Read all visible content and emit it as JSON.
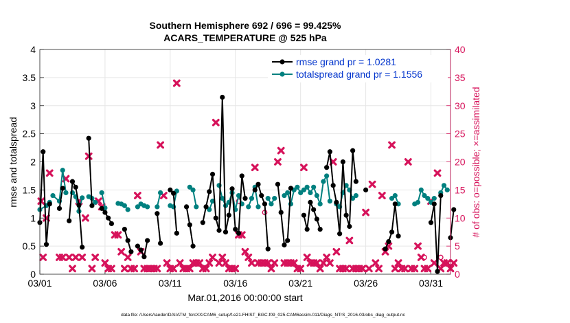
{
  "chart_data": {
    "type": "line",
    "title": "Southern Hemisphere 692 / 696 = 99.425%",
    "subtitle": "ACARS_TEMPERATURE @ 525 hPa",
    "xlabel": "Mar.01,2016 00:00:00 start",
    "ylabel_left": "rmse and totalspread",
    "ylabel_right": "# of obs: o=possible; ×=assimilated",
    "footer": "data file: /Users/raeder/DAI/ATM_forcXX/CAM6_setup/f.e21.FHIST_BGC.f09_025.CAM6assim.011/Diags_NTrS_2016-03/obs_diag_output.nc",
    "xlim": [
      0,
      31.5
    ],
    "ylim_left": [
      0,
      4
    ],
    "ylim_right": [
      0,
      40
    ],
    "x_ticks": [
      0,
      5,
      10,
      15,
      20,
      25,
      30
    ],
    "x_tick_labels": [
      "03/01",
      "03/06",
      "03/11",
      "03/16",
      "03/21",
      "03/26",
      "03/31"
    ],
    "y_ticks_left": [
      "0",
      "0.5",
      "1",
      "1.5",
      "2",
      "2.5",
      "3",
      "3.5",
      "4"
    ],
    "y_ticks_right": [
      "0",
      "5",
      "10",
      "15",
      "20",
      "25",
      "30",
      "35",
      "40"
    ],
    "grid": true,
    "legend_position": "top-right",
    "colors": {
      "rmse": "#000000",
      "spread": "#00807f",
      "obs": "#d6125a",
      "legend_text": "#0033cc"
    },
    "series": [
      {
        "name": "rmse grand pr = 1.0281",
        "axis": "left",
        "x": [
          0,
          0.25,
          0.5,
          0.75,
          null,
          1.5,
          1.75,
          null,
          2.25,
          2.5,
          2.75,
          3.0,
          3.25,
          null,
          3.75,
          4.0,
          null,
          4.75,
          5.0,
          5.25,
          5.5,
          null,
          6.5,
          6.75,
          7.0,
          null,
          7.5,
          7.75,
          8.0,
          8.25,
          null,
          9.0,
          9.25,
          null,
          10.0,
          10.25,
          10.5,
          null,
          11.25,
          11.5,
          11.75,
          null,
          12.5,
          12.75,
          13.0,
          13.25,
          13.5,
          13.75,
          14.0,
          14.25,
          14.5,
          14.75,
          15.0,
          15.25,
          15.5,
          15.75,
          null,
          16.5,
          16.75,
          17.0,
          17.25,
          17.5,
          null,
          18.25,
          18.5,
          18.75,
          19.0,
          19.25,
          null,
          20.25,
          20.5,
          20.75,
          21.0,
          21.25,
          21.5,
          null,
          22.0,
          22.25,
          22.5,
          22.75,
          23.0,
          23.25,
          23.5,
          23.75,
          24.0,
          24.25,
          null,
          25.0,
          null,
          26.5,
          26.75,
          27.0,
          27.25,
          27.5,
          null,
          30.0,
          30.25,
          30.5,
          30.75,
          null,
          31.5,
          31.75
        ],
        "values": [
          0.92,
          2.18,
          0.53,
          1.25,
          null,
          1.17,
          1.53,
          null,
          0.95,
          1.65,
          1.55,
          1.23,
          0.48,
          null,
          2.42,
          1.22,
          null,
          1.17,
          1.1,
          1.0,
          0.9,
          null,
          0.8,
          0.6,
          0.4,
          null,
          0.5,
          0.43,
          0.31,
          0.6,
          null,
          1.08,
          0.55,
          null,
          1.5,
          1.44,
          0.73,
          null,
          1.2,
          0.88,
          0.5,
          null,
          0.92,
          1.2,
          1.47,
          1.78,
          1.0,
          0.78,
          3.15,
          0.75,
          1.05,
          1.52,
          0.8,
          0.73,
          1.75,
          1.35,
          null,
          1.5,
          1.6,
          1.4,
          1.25,
          0.45,
          null,
          1.6,
          1.1,
          0.52,
          0.6,
          1.53,
          null,
          1.05,
          0.8,
          1.28,
          1.15,
          0.98,
          0.8,
          null,
          1.9,
          2.18,
          1.58,
          1.28,
          0.72,
          2.0,
          1.05,
          0.85,
          2.2,
          1.65,
          null,
          1.5,
          null,
          0.45,
          0.58,
          0.75,
          1.25,
          0.68,
          null,
          0.92,
          1.25,
          0.05,
          1.4,
          null,
          0.65,
          1.15
        ]
      },
      {
        "name": "totalspread grand pr = 1.1556",
        "axis": "left",
        "x": [
          0,
          0.5,
          0.75,
          null,
          1.0,
          1.5,
          1.75,
          2.0,
          null,
          2.5,
          2.75,
          3.0,
          3.25,
          null,
          3.75,
          4.0,
          4.25,
          null,
          4.75,
          5.0,
          null,
          6.0,
          6.25,
          6.5,
          6.75,
          null,
          7.5,
          7.75,
          8.0,
          8.25,
          null,
          9.0,
          9.25,
          null,
          10.0,
          10.25,
          10.5,
          null,
          11.5,
          11.75,
          12.0,
          null,
          13.0,
          13.25,
          null,
          13.75,
          14.0,
          14.25,
          14.5,
          14.75,
          15.0,
          15.25,
          15.5,
          null,
          16.0,
          16.25,
          16.5,
          16.75,
          null,
          17.5,
          17.75,
          18.0,
          null,
          18.75,
          19.0,
          19.25,
          19.5,
          19.75,
          20.0,
          20.25,
          20.5,
          20.75,
          21.0,
          21.25,
          21.5,
          21.75,
          22.0,
          22.25,
          null,
          22.75,
          23.0,
          23.25,
          23.5,
          23.75,
          24.0,
          24.25,
          null,
          27.0,
          27.25,
          27.5,
          null,
          28.75,
          29.0,
          29.25,
          29.5,
          29.75,
          30.0,
          30.25,
          null,
          30.75,
          31.0,
          31.25
        ],
        "values": [
          1.15,
          1.22,
          1.28,
          null,
          1.4,
          1.3,
          1.85,
          1.45,
          null,
          1.45,
          1.38,
          1.12,
          1.36,
          null,
          1.38,
          1.35,
          1.28,
          null,
          1.45,
          1.18,
          null,
          1.26,
          1.25,
          1.22,
          1.15,
          null,
          1.2,
          1.25,
          1.22,
          1.2,
          null,
          1.2,
          1.45,
          null,
          1.22,
          1.2,
          1.48,
          null,
          1.55,
          1.5,
          1.2,
          null,
          1.15,
          1.3,
          null,
          1.58,
          1.35,
          1.22,
          1.28,
          1.45,
          1.15,
          1.4,
          1.25,
          null,
          1.2,
          1.35,
          1.55,
          1.2,
          null,
          1.35,
          1.25,
          1.35,
          null,
          1.4,
          1.45,
          1.25,
          1.5,
          1.55,
          1.45,
          1.5,
          1.55,
          1.45,
          1.55,
          1.4,
          1.25,
          1.65,
          1.75,
          1.3,
          null,
          1.25,
          1.2,
          1.45,
          1.58,
          1.5,
          1.35,
          1.4,
          null,
          1.35,
          1.4,
          1.25,
          null,
          1.25,
          1.28,
          1.5,
          1.4,
          1.35,
          1.28,
          1.35,
          null,
          1.45,
          1.58,
          1.5
        ]
      },
      {
        "name": "# of obs assimilated",
        "axis": "right",
        "marker": "x",
        "x": [
          0.1,
          0.25,
          0.5,
          0.75,
          1.5,
          1.75,
          2.0,
          2.25,
          2.5,
          2.75,
          3.0,
          3.25,
          3.5,
          3.75,
          4.0,
          4.25,
          4.5,
          4.75,
          5.0,
          5.25,
          5.5,
          5.75,
          6.0,
          6.25,
          6.5,
          6.75,
          7.0,
          7.25,
          7.5,
          7.75,
          8.0,
          8.25,
          8.5,
          8.75,
          9.0,
          9.25,
          9.5,
          9.75,
          10.0,
          10.25,
          10.5,
          10.75,
          11.0,
          11.25,
          11.5,
          11.75,
          12.0,
          12.25,
          12.5,
          12.75,
          13.0,
          13.25,
          13.5,
          13.75,
          14.0,
          14.25,
          14.5,
          14.75,
          15.0,
          15.25,
          15.5,
          15.75,
          16.0,
          16.25,
          16.5,
          16.75,
          17.0,
          17.25,
          17.5,
          17.75,
          18.0,
          18.25,
          18.5,
          18.75,
          19.0,
          19.25,
          19.5,
          19.75,
          20.0,
          20.25,
          20.5,
          20.75,
          21.0,
          21.25,
          21.5,
          21.75,
          22.0,
          22.25,
          22.5,
          22.75,
          23.0,
          23.25,
          23.5,
          23.75,
          24.0,
          24.25,
          24.5,
          24.75,
          25.0,
          25.25,
          25.5,
          25.75,
          26.0,
          26.25,
          26.5,
          26.75,
          27.0,
          27.25,
          27.5,
          27.75,
          28.0,
          28.25,
          28.5,
          28.75,
          29.0,
          29.25,
          29.5,
          29.75,
          30.0,
          30.25,
          30.5,
          30.75,
          31.0,
          31.25,
          31.5,
          31.75
        ],
        "values": [
          13,
          3,
          10,
          18,
          3,
          3,
          17,
          3,
          1,
          3,
          13,
          3,
          10,
          21,
          1,
          3,
          13,
          12,
          2,
          1,
          1,
          7,
          7,
          4,
          1,
          3,
          1,
          1,
          14,
          4,
          1,
          1,
          1,
          1,
          1,
          23,
          14,
          2,
          1,
          1,
          34,
          2,
          1,
          1,
          1,
          2,
          2,
          2,
          1,
          1,
          2,
          3,
          27,
          2,
          3,
          2,
          1,
          1,
          1,
          7,
          7,
          4,
          3,
          2,
          19,
          2,
          2,
          2,
          2,
          1,
          2,
          20,
          22,
          2,
          2,
          2,
          2,
          1,
          1,
          19,
          3,
          2,
          2,
          2,
          1,
          2,
          3,
          2,
          20,
          4,
          1,
          1,
          1,
          6,
          1,
          1,
          1,
          1,
          11,
          1,
          16,
          2,
          1,
          14,
          4,
          5,
          23,
          1,
          2,
          1,
          1,
          20,
          1,
          1,
          5,
          3,
          1,
          1,
          13,
          2,
          18,
          1,
          2,
          2,
          1,
          2
        ]
      },
      {
        "name": "# of obs possible",
        "axis": "right",
        "marker": "o",
        "x": [
          15.25,
          17.25,
          29.5,
          30.75
        ],
        "values": [
          13,
          11,
          3,
          3
        ]
      }
    ]
  }
}
